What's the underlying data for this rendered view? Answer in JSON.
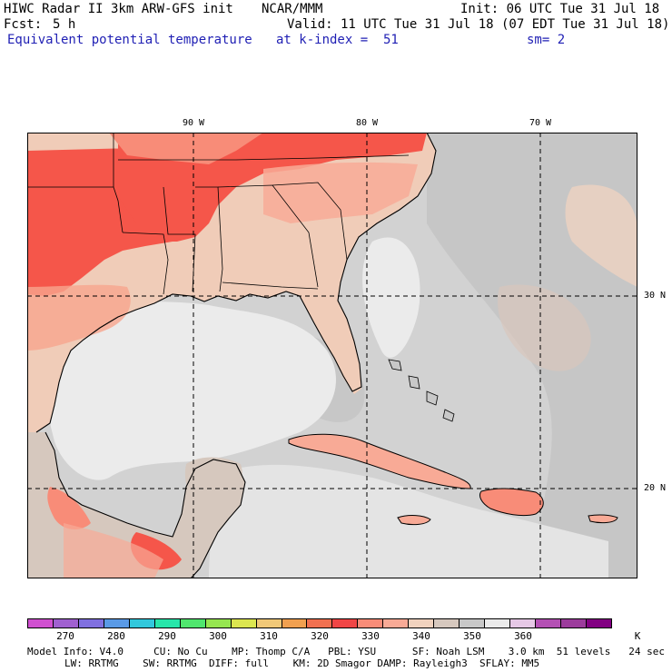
{
  "header": {
    "model_line": "HIWC Radar II 3km ARW-GFS init",
    "org": "NCAR/MMM",
    "init": "Init: 06 UTC Tue 31 Jul 18",
    "fcst_label": "Fcst:",
    "fcst_value": "5 h",
    "valid": "Valid: 11 UTC Tue 31 Jul 18 (07 EDT Tue 31 Jul 18)",
    "field": "Equivalent potential temperature",
    "level": "at k-index =  51",
    "smoothing": "sm= 2"
  },
  "map": {
    "lon_labels": [
      "90 W",
      "80 W",
      "70 W"
    ],
    "lat_labels": [
      "30 N",
      "20 N"
    ],
    "colors": {
      "ocean_low": "#ebebeb",
      "ocean_mid": "#d2d2d2",
      "ocean_high": "#bcbcbc",
      "land_warm": "#f0ccb8",
      "land_hot": "#f8a58d",
      "land_hotter": "#ff8870",
      "land_hottest": "#f5564a",
      "gridline": "#000000",
      "coast": "#000000"
    }
  },
  "colorbar": {
    "units": "K",
    "colors": [
      "#d050d0",
      "#a060d0",
      "#8070e0",
      "#5a9ae6",
      "#32c8dc",
      "#28e6aa",
      "#50e66e",
      "#96e650",
      "#dce650",
      "#f0c878",
      "#f0a050",
      "#f07050",
      "#f04646",
      "#f88c78",
      "#f8aa96",
      "#f0d2be",
      "#d6c8be",
      "#c8c8c8",
      "#ebebeb",
      "#e6c8e6",
      "#b450b4",
      "#9c3c9c",
      "#820082"
    ],
    "labels": [
      "270",
      "280",
      "290",
      "300",
      "310",
      "320",
      "330",
      "340",
      "350",
      "360",
      "K"
    ]
  },
  "footer": {
    "line1": "Model Info: V4.0     CU: No Cu    MP: Thomp C/A   PBL: YSU      SF: Noah LSM    3.0 km  51 levels   24 sec",
    "line2": "LW: RRTMG    SW: RRTMG  DIFF: full    KM: 2D Smagor DAMP: Rayleigh3  SFLAY: MM5"
  }
}
